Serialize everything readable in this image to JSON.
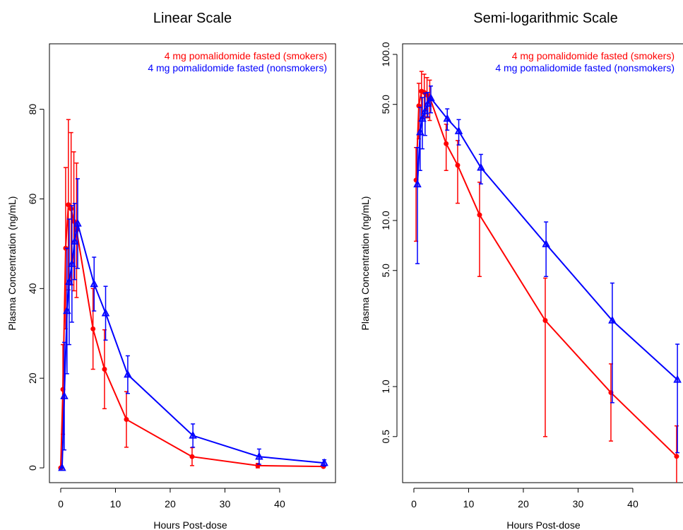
{
  "chart_data": [
    {
      "type": "line",
      "title": "Linear Scale",
      "xlabel": "Hours Post-dose",
      "ylabel": "Plasma Concentration (ng/mL)",
      "log_y": false,
      "legend": "upper right",
      "xlim": [
        -2.06,
        50.2
      ],
      "ylim": [
        -3.3,
        94.6
      ],
      "xticks": [
        0,
        10,
        20,
        30,
        40
      ],
      "yticks": [
        0,
        20,
        40,
        60,
        80
      ],
      "series": [
        {
          "name": "4 mg pomalidomide fasted (smokers)",
          "color": "#ff0000",
          "marker": "circle",
          "x": [
            0,
            0.4,
            0.9,
            1.4,
            1.9,
            2.4,
            2.9,
            5.9,
            8,
            12,
            24,
            36,
            48
          ],
          "values": [
            0,
            17.5,
            49,
            58.7,
            57.8,
            55,
            53,
            31,
            22,
            10.8,
            2.5,
            0.5,
            0.3
          ],
          "errors": [
            0,
            10,
            18,
            19,
            17,
            15.5,
            15,
            9,
            8.8,
            6.2,
            2,
            0.5,
            0.2
          ]
        },
        {
          "name": "4 mg pomalidomide fasted (nonsmokers)",
          "color": "#0000ff",
          "marker": "triangle",
          "x": [
            0.25,
            0.65,
            1.15,
            1.55,
            2.05,
            2.55,
            3.1,
            6.1,
            8.2,
            12.25,
            24.15,
            36.25,
            48.15
          ],
          "values": [
            0,
            16,
            35,
            41.5,
            45.5,
            50.5,
            54.5,
            41,
            34.5,
            20.8,
            7.2,
            2.5,
            1.1
          ],
          "errors": [
            0,
            12,
            14,
            14,
            13,
            8.5,
            10,
            6,
            6,
            4.2,
            2.6,
            1.7,
            0.7
          ]
        }
      ]
    },
    {
      "type": "line",
      "title": "Semi-logarithmic Scale",
      "xlabel": "Hours Post-dose",
      "ylabel": "Plasma Concentration (ng/mL)",
      "log_y": true,
      "legend": "upper right",
      "xlim": [
        -2.06,
        50.2
      ],
      "ylim": [
        0.264,
        115.8
      ],
      "xticks": [
        0,
        10,
        20,
        30,
        40
      ],
      "yticks": [
        0.5,
        {
          "value": 1,
          "label": "1.0"
        },
        {
          "value": 5,
          "label": "5.0"
        },
        {
          "value": 10,
          "label": "10.0"
        },
        {
          "value": 50,
          "label": "50.0"
        },
        {
          "value": 100,
          "label": "100.0"
        }
      ],
      "series": [
        {
          "name": "4 mg pomalidomide fasted (smokers)",
          "color": "#ff0000",
          "marker": "circle",
          "x": [
            0.4,
            0.9,
            1.4,
            1.9,
            2.4,
            2.9,
            5.9,
            8,
            12,
            24,
            36,
            48
          ],
          "values": [
            17.5,
            49,
            60,
            59,
            57,
            55,
            29,
            21.5,
            10.8,
            2.5,
            0.92,
            0.38
          ],
          "errors": [
            10,
            18,
            19,
            17,
            15.5,
            15,
            9,
            8.8,
            6.2,
            2,
            0.45,
            0.2
          ]
        },
        {
          "name": "4 mg pomalidomide fasted (nonsmokers)",
          "color": "#0000ff",
          "marker": "triangle",
          "x": [
            0.65,
            1.15,
            1.55,
            2.05,
            2.55,
            3.1,
            6.1,
            8.2,
            12.25,
            24.15,
            36.25,
            48.15
          ],
          "values": [
            16.5,
            34,
            41,
            45.5,
            50.5,
            54.5,
            41,
            34.5,
            20.8,
            7.2,
            2.5,
            1.1
          ],
          "errors": [
            11,
            14,
            14,
            13,
            8.5,
            10,
            6,
            6,
            4.2,
            2.6,
            1.7,
            0.7
          ]
        }
      ]
    }
  ]
}
